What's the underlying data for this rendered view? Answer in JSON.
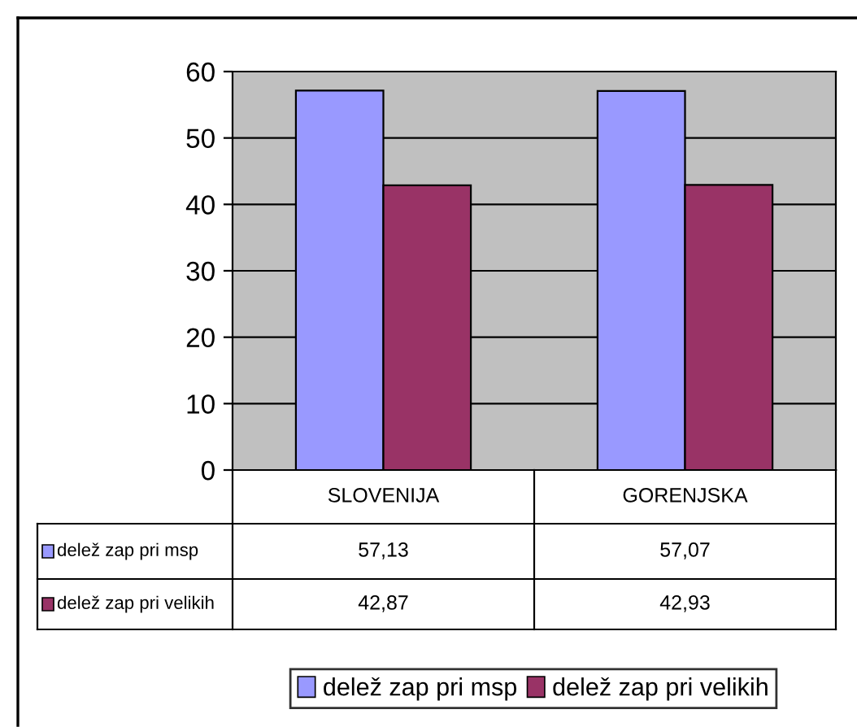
{
  "chart_data": {
    "type": "bar",
    "categories": [
      "SLOVENIJA",
      "GORENJSKA"
    ],
    "series": [
      {
        "name": "delež zap pri msp",
        "color": "#9999ff",
        "values": [
          57.13,
          57.07
        ],
        "value_labels": [
          "57,13",
          "57,07"
        ]
      },
      {
        "name": "delež zap pri velikih",
        "color": "#993366",
        "values": [
          42.87,
          42.93
        ],
        "value_labels": [
          "42,87",
          "42,93"
        ]
      }
    ],
    "ylim": [
      0,
      60
    ],
    "yticks": [
      0,
      10,
      20,
      30,
      40,
      50,
      60
    ],
    "grid": "y",
    "legend": "bottom"
  }
}
